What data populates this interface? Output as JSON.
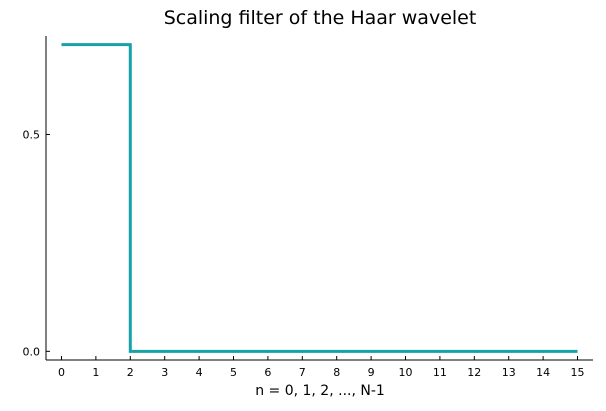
{
  "chart_data": {
    "type": "line",
    "title": "Scaling filter of the Haar wavelet",
    "xlabel": "n = 0, 1, 2, ..., N-1",
    "ylabel": "",
    "x_ticks": [
      "0",
      "1",
      "2",
      "3",
      "4",
      "5",
      "6",
      "7",
      "8",
      "9",
      "10",
      "11",
      "12",
      "13",
      "14",
      "15"
    ],
    "y_ticks": [
      "0.0",
      "0.5"
    ],
    "y_tick_values": [
      0,
      0.5
    ],
    "xlim": [
      -0.45,
      15.45
    ],
    "ylim": [
      -0.02,
      0.727
    ],
    "grid": false,
    "legend": false,
    "line_style": "step",
    "series": [
      {
        "color": "#15a3a7",
        "x": [
          0,
          1,
          2,
          3,
          4,
          5,
          6,
          7,
          8,
          9,
          10,
          11,
          12,
          13,
          14,
          15
        ],
        "y": [
          0.7071,
          0.7071,
          0,
          0,
          0,
          0,
          0,
          0,
          0,
          0,
          0,
          0,
          0,
          0,
          0,
          0
        ]
      }
    ]
  }
}
